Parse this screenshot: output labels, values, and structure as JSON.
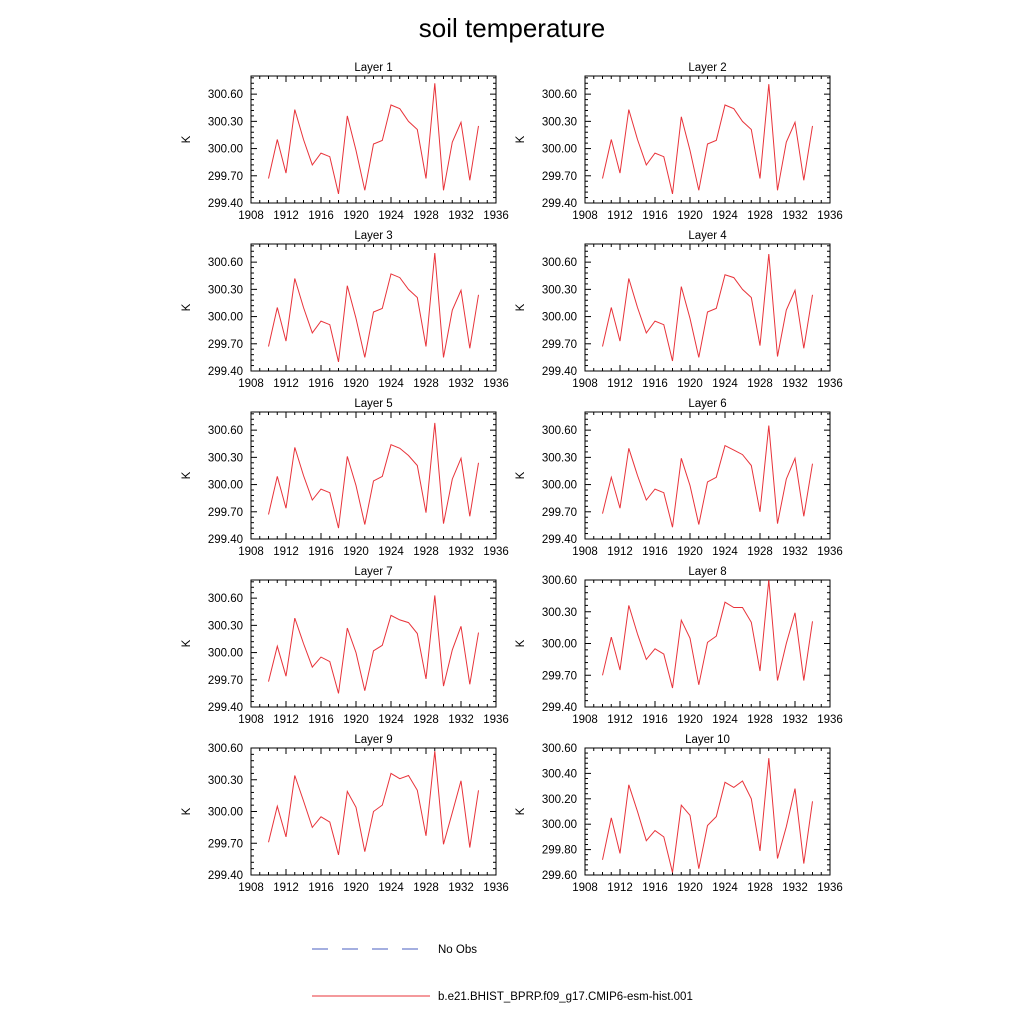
{
  "figure": {
    "title": "soil temperature"
  },
  "legend": {
    "items": [
      {
        "label": "No Obs",
        "color": "#4a5fc1",
        "style": "dashed"
      },
      {
        "label": "b.e21.BHIST_BPRP.f09_g17.CMIP6-esm-hist.001",
        "color": "#e8333a",
        "style": "solid"
      }
    ]
  },
  "chart_data": [
    {
      "type": "line",
      "title": "Layer 1",
      "ylabel": "K",
      "xlim": [
        1908,
        1936
      ],
      "ylim": [
        299.4,
        300.8
      ],
      "xticks": [
        1908,
        1912,
        1916,
        1920,
        1924,
        1928,
        1932,
        1936
      ],
      "yticks": [
        "299.40",
        "299.70",
        "300.00",
        "300.30",
        "300.60"
      ],
      "x": [
        1910,
        1911,
        1912,
        1913,
        1914,
        1915,
        1916,
        1917,
        1918,
        1919,
        1920,
        1921,
        1922,
        1923,
        1924,
        1925,
        1926,
        1927,
        1928,
        1929,
        1930,
        1931,
        1932,
        1933,
        1934
      ],
      "series": [
        {
          "name": "b.e21.BHIST_BPRP.f09_g17.CMIP6-esm-hist.001",
          "values": [
            299.67,
            300.1,
            299.73,
            300.43,
            300.1,
            299.82,
            299.95,
            299.91,
            299.5,
            300.36,
            299.98,
            299.54,
            300.05,
            300.09,
            300.48,
            300.44,
            300.3,
            300.21,
            299.67,
            300.72,
            299.54,
            300.07,
            300.29,
            299.65,
            300.25
          ]
        }
      ]
    },
    {
      "type": "line",
      "title": "Layer 2",
      "ylabel": "K",
      "xlim": [
        1908,
        1936
      ],
      "ylim": [
        299.4,
        300.8
      ],
      "xticks": [
        1908,
        1912,
        1916,
        1920,
        1924,
        1928,
        1932,
        1936
      ],
      "yticks": [
        "299.40",
        "299.70",
        "300.00",
        "300.30",
        "300.60"
      ],
      "x": [
        1910,
        1911,
        1912,
        1913,
        1914,
        1915,
        1916,
        1917,
        1918,
        1919,
        1920,
        1921,
        1922,
        1923,
        1924,
        1925,
        1926,
        1927,
        1928,
        1929,
        1930,
        1931,
        1932,
        1933,
        1934
      ],
      "series": [
        {
          "name": "b.e21.BHIST_BPRP.f09_g17.CMIP6-esm-hist.001",
          "values": [
            299.67,
            300.1,
            299.73,
            300.43,
            300.1,
            299.82,
            299.95,
            299.91,
            299.5,
            300.35,
            299.98,
            299.54,
            300.05,
            300.09,
            300.48,
            300.44,
            300.3,
            300.21,
            299.67,
            300.71,
            299.54,
            300.07,
            300.29,
            299.65,
            300.25
          ]
        }
      ]
    },
    {
      "type": "line",
      "title": "Layer 3",
      "ylabel": "K",
      "xlim": [
        1908,
        1936
      ],
      "ylim": [
        299.4,
        300.8
      ],
      "xticks": [
        1908,
        1912,
        1916,
        1920,
        1924,
        1928,
        1932,
        1936
      ],
      "yticks": [
        "299.40",
        "299.70",
        "300.00",
        "300.30",
        "300.60"
      ],
      "x": [
        1910,
        1911,
        1912,
        1913,
        1914,
        1915,
        1916,
        1917,
        1918,
        1919,
        1920,
        1921,
        1922,
        1923,
        1924,
        1925,
        1926,
        1927,
        1928,
        1929,
        1930,
        1931,
        1932,
        1933,
        1934
      ],
      "series": [
        {
          "name": "b.e21.BHIST_BPRP.f09_g17.CMIP6-esm-hist.001",
          "values": [
            299.67,
            300.1,
            299.73,
            300.42,
            300.1,
            299.82,
            299.95,
            299.91,
            299.5,
            300.34,
            299.98,
            299.55,
            300.05,
            300.09,
            300.47,
            300.43,
            300.3,
            300.21,
            299.67,
            300.7,
            299.55,
            300.07,
            300.29,
            299.65,
            300.24
          ]
        }
      ]
    },
    {
      "type": "line",
      "title": "Layer 4",
      "ylabel": "K",
      "xlim": [
        1908,
        1936
      ],
      "ylim": [
        299.4,
        300.8
      ],
      "xticks": [
        1908,
        1912,
        1916,
        1920,
        1924,
        1928,
        1932,
        1936
      ],
      "yticks": [
        "299.40",
        "299.70",
        "300.00",
        "300.30",
        "300.60"
      ],
      "x": [
        1910,
        1911,
        1912,
        1913,
        1914,
        1915,
        1916,
        1917,
        1918,
        1919,
        1920,
        1921,
        1922,
        1923,
        1924,
        1925,
        1926,
        1927,
        1928,
        1929,
        1930,
        1931,
        1932,
        1933,
        1934
      ],
      "series": [
        {
          "name": "b.e21.BHIST_BPRP.f09_g17.CMIP6-esm-hist.001",
          "values": [
            299.67,
            300.1,
            299.73,
            300.42,
            300.1,
            299.82,
            299.95,
            299.91,
            299.51,
            300.33,
            299.98,
            299.55,
            300.05,
            300.09,
            300.46,
            300.43,
            300.3,
            300.21,
            299.68,
            300.69,
            299.56,
            300.07,
            300.29,
            299.65,
            300.24
          ]
        }
      ]
    },
    {
      "type": "line",
      "title": "Layer 5",
      "ylabel": "K",
      "xlim": [
        1908,
        1936
      ],
      "ylim": [
        299.4,
        300.8
      ],
      "xticks": [
        1908,
        1912,
        1916,
        1920,
        1924,
        1928,
        1932,
        1936
      ],
      "yticks": [
        "299.40",
        "299.70",
        "300.00",
        "300.30",
        "300.60"
      ],
      "x": [
        1910,
        1911,
        1912,
        1913,
        1914,
        1915,
        1916,
        1917,
        1918,
        1919,
        1920,
        1921,
        1922,
        1923,
        1924,
        1925,
        1926,
        1927,
        1928,
        1929,
        1930,
        1931,
        1932,
        1933,
        1934
      ],
      "series": [
        {
          "name": "b.e21.BHIST_BPRP.f09_g17.CMIP6-esm-hist.001",
          "values": [
            299.67,
            300.09,
            299.74,
            300.41,
            300.1,
            299.83,
            299.95,
            299.91,
            299.52,
            300.31,
            299.99,
            299.56,
            300.04,
            300.09,
            300.44,
            300.4,
            300.32,
            300.21,
            299.69,
            300.68,
            299.57,
            300.06,
            300.29,
            299.65,
            300.24
          ]
        }
      ]
    },
    {
      "type": "line",
      "title": "Layer 6",
      "ylabel": "K",
      "xlim": [
        1908,
        1936
      ],
      "ylim": [
        299.4,
        300.8
      ],
      "xticks": [
        1908,
        1912,
        1916,
        1920,
        1924,
        1928,
        1932,
        1936
      ],
      "yticks": [
        "299.40",
        "299.70",
        "300.00",
        "300.30",
        "300.60"
      ],
      "x": [
        1910,
        1911,
        1912,
        1913,
        1914,
        1915,
        1916,
        1917,
        1918,
        1919,
        1920,
        1921,
        1922,
        1923,
        1924,
        1925,
        1926,
        1927,
        1928,
        1929,
        1930,
        1931,
        1932,
        1933,
        1934
      ],
      "series": [
        {
          "name": "b.e21.BHIST_BPRP.f09_g17.CMIP6-esm-hist.001",
          "values": [
            299.68,
            300.08,
            299.74,
            300.4,
            300.1,
            299.83,
            299.95,
            299.91,
            299.53,
            300.29,
            299.99,
            299.56,
            300.03,
            300.08,
            300.43,
            300.38,
            300.33,
            300.21,
            299.7,
            300.65,
            299.57,
            300.06,
            300.29,
            299.65,
            300.23
          ]
        }
      ]
    },
    {
      "type": "line",
      "title": "Layer 7",
      "ylabel": "K",
      "xlim": [
        1908,
        1936
      ],
      "ylim": [
        299.4,
        300.8
      ],
      "xticks": [
        1908,
        1912,
        1916,
        1920,
        1924,
        1928,
        1932,
        1936
      ],
      "yticks": [
        "299.40",
        "299.70",
        "300.00",
        "300.30",
        "300.60"
      ],
      "x": [
        1910,
        1911,
        1912,
        1913,
        1914,
        1915,
        1916,
        1917,
        1918,
        1919,
        1920,
        1921,
        1922,
        1923,
        1924,
        1925,
        1926,
        1927,
        1928,
        1929,
        1930,
        1931,
        1932,
        1933,
        1934
      ],
      "series": [
        {
          "name": "b.e21.BHIST_BPRP.f09_g17.CMIP6-esm-hist.001",
          "values": [
            299.68,
            300.07,
            299.74,
            300.38,
            300.1,
            299.84,
            299.95,
            299.9,
            299.55,
            300.27,
            300.0,
            299.58,
            300.02,
            300.08,
            300.41,
            300.36,
            300.33,
            300.21,
            299.71,
            300.63,
            299.63,
            300.03,
            300.29,
            299.65,
            300.22
          ]
        }
      ]
    },
    {
      "type": "line",
      "title": "Layer 8",
      "ylabel": "K",
      "xlim": [
        1908,
        1936
      ],
      "ylim": [
        299.4,
        300.6
      ],
      "xticks": [
        1908,
        1912,
        1916,
        1920,
        1924,
        1928,
        1932,
        1936
      ],
      "yticks": [
        "299.40",
        "299.70",
        "300.00",
        "300.30",
        "300.60"
      ],
      "x": [
        1910,
        1911,
        1912,
        1913,
        1914,
        1915,
        1916,
        1917,
        1918,
        1919,
        1920,
        1921,
        1922,
        1923,
        1924,
        1925,
        1926,
        1927,
        1928,
        1929,
        1930,
        1931,
        1932,
        1933,
        1934
      ],
      "series": [
        {
          "name": "b.e21.BHIST_BPRP.f09_g17.CMIP6-esm-hist.001",
          "values": [
            299.7,
            300.06,
            299.75,
            300.36,
            300.09,
            299.85,
            299.95,
            299.9,
            299.58,
            300.22,
            300.05,
            299.61,
            300.01,
            300.07,
            300.39,
            300.34,
            300.34,
            300.2,
            299.74,
            300.6,
            299.65,
            300.0,
            300.29,
            299.65,
            300.21
          ]
        }
      ]
    },
    {
      "type": "line",
      "title": "Layer 9",
      "ylabel": "K",
      "xlim": [
        1908,
        1936
      ],
      "ylim": [
        299.4,
        300.6
      ],
      "xticks": [
        1908,
        1912,
        1916,
        1920,
        1924,
        1928,
        1932,
        1936
      ],
      "yticks": [
        "299.40",
        "299.70",
        "300.00",
        "300.30",
        "300.60"
      ],
      "x": [
        1910,
        1911,
        1912,
        1913,
        1914,
        1915,
        1916,
        1917,
        1918,
        1919,
        1920,
        1921,
        1922,
        1923,
        1924,
        1925,
        1926,
        1927,
        1928,
        1929,
        1930,
        1931,
        1932,
        1933,
        1934
      ],
      "series": [
        {
          "name": "b.e21.BHIST_BPRP.f09_g17.CMIP6-esm-hist.001",
          "values": [
            299.71,
            300.05,
            299.76,
            300.34,
            300.1,
            299.85,
            299.95,
            299.9,
            299.59,
            300.19,
            300.04,
            299.62,
            300.0,
            300.06,
            300.36,
            300.31,
            300.34,
            300.2,
            299.77,
            300.57,
            299.69,
            299.99,
            300.29,
            299.66,
            300.2
          ]
        }
      ]
    },
    {
      "type": "line",
      "title": "Layer 10",
      "ylabel": "K",
      "xlim": [
        1908,
        1936
      ],
      "ylim": [
        299.6,
        300.6
      ],
      "xticks": [
        1908,
        1912,
        1916,
        1920,
        1924,
        1928,
        1932,
        1936
      ],
      "yticks": [
        "299.60",
        "299.80",
        "300.00",
        "300.20",
        "300.40",
        "300.60"
      ],
      "x": [
        1910,
        1911,
        1912,
        1913,
        1914,
        1915,
        1916,
        1917,
        1918,
        1919,
        1920,
        1921,
        1922,
        1923,
        1924,
        1925,
        1926,
        1927,
        1928,
        1929,
        1930,
        1931,
        1932,
        1933,
        1934
      ],
      "series": [
        {
          "name": "b.e21.BHIST_BPRP.f09_g17.CMIP6-esm-hist.001",
          "values": [
            299.72,
            300.05,
            299.77,
            300.31,
            300.1,
            299.87,
            299.95,
            299.9,
            299.62,
            300.15,
            300.07,
            299.65,
            299.99,
            300.06,
            300.33,
            300.29,
            300.34,
            300.2,
            299.79,
            300.52,
            299.73,
            299.98,
            300.28,
            299.69,
            300.18
          ]
        }
      ]
    }
  ]
}
